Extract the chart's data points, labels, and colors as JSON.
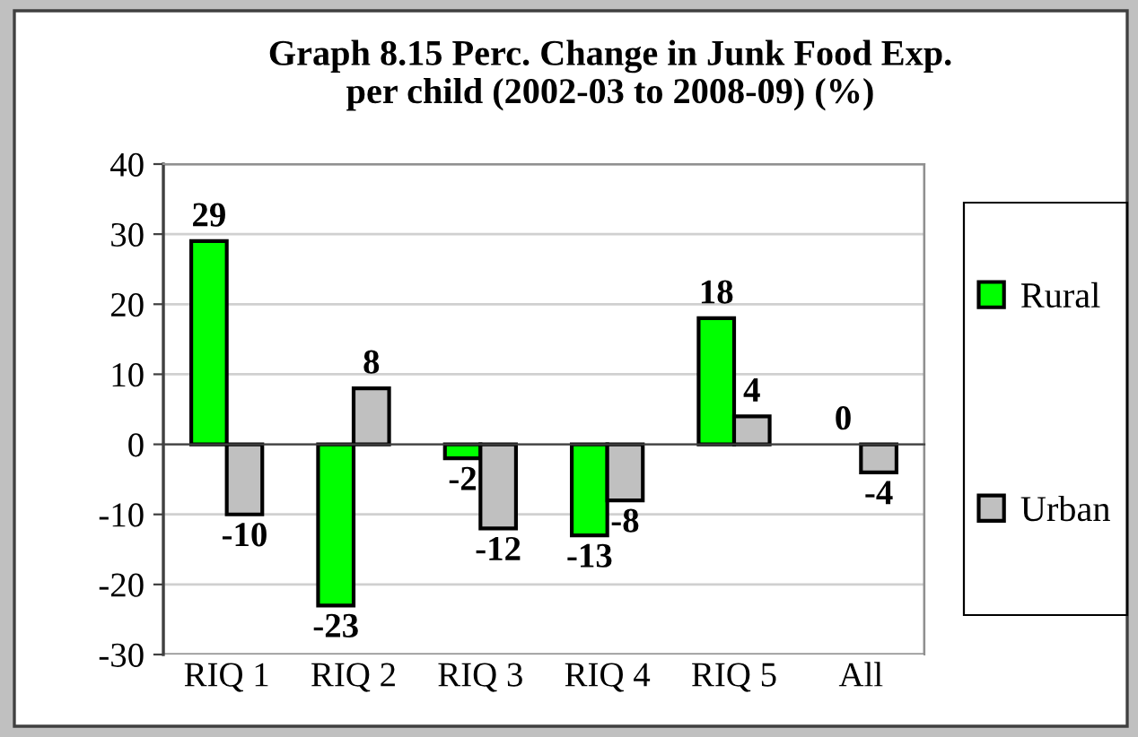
{
  "chart_data": {
    "type": "bar",
    "title": "Graph 8.15 Perc. Change in Junk Food Exp.\nper child (2002-03 to 2008-09) (%)",
    "categories": [
      "RIQ 1",
      "RIQ 2",
      "RIQ 3",
      "RIQ 4",
      "RIQ 5",
      "All"
    ],
    "series": [
      {
        "name": "Rural",
        "color": "#00ff00",
        "values": [
          29,
          -23,
          -2,
          -13,
          18,
          0
        ]
      },
      {
        "name": "Urban",
        "color": "#c0c0c0",
        "values": [
          -10,
          8,
          -12,
          -8,
          4,
          -4
        ]
      }
    ],
    "ylim": [
      -30,
      40
    ],
    "yticks": [
      -30,
      -20,
      -10,
      0,
      10,
      20,
      30,
      40
    ],
    "grid": "y",
    "legend": "right",
    "data_labels": true
  }
}
